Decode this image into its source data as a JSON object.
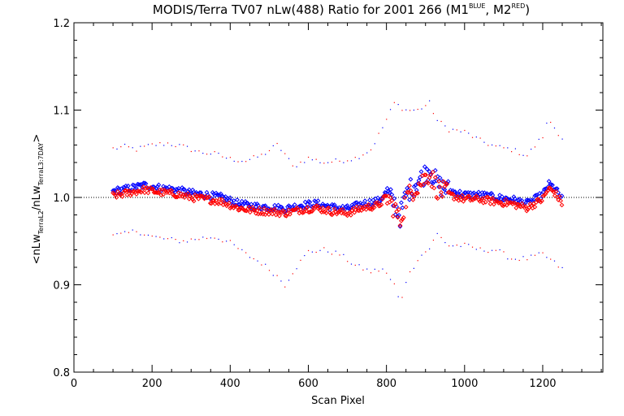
{
  "chart_data": {
    "type": "scatter",
    "title": {
      "main": "MODIS/Terra TV07 nLw(488) Ratio for 2001 266 (M1",
      "sup1": "BLUE",
      "mid": ", M2",
      "sup2": "RED",
      "end": ")"
    },
    "xlabel": "Scan Pixel",
    "ylabel": {
      "open": "<nLw",
      "sub1": "TerraL2",
      "slash": "/nLw",
      "sub2": "TerraL3:7DAY",
      "close": ">"
    },
    "xlim": [
      0,
      1354
    ],
    "ylim": [
      0.8,
      1.2
    ],
    "x_ticks": [
      0,
      200,
      400,
      600,
      800,
      1000,
      1200
    ],
    "x_tick_labels": [
      "0",
      "200",
      "400",
      "600",
      "800",
      "1000",
      "1200"
    ],
    "y_ticks": [
      0.8,
      0.9,
      1.0,
      1.1,
      1.2
    ],
    "y_tick_labels": [
      "0.8",
      "0.9",
      "1.0",
      "1.1",
      "1.2"
    ],
    "reference_line": {
      "y": 1.0,
      "style": "dotted"
    },
    "colors": {
      "M1": "#0000ff",
      "M2": "#ff0000",
      "axes": "#000000"
    },
    "mean_curve": {
      "x": [
        100,
        150,
        180,
        220,
        260,
        300,
        340,
        380,
        420,
        460,
        500,
        540,
        580,
        620,
        660,
        700,
        740,
        780,
        800,
        820,
        835,
        850,
        870,
        890,
        910,
        930,
        960,
        1000,
        1040,
        1080,
        1120,
        1160,
        1200,
        1215,
        1230,
        1250
      ],
      "y": [
        1.004,
        1.008,
        1.011,
        1.008,
        1.006,
        1.002,
        1.0,
        0.997,
        0.99,
        0.987,
        0.986,
        0.984,
        0.988,
        0.99,
        0.986,
        0.984,
        0.99,
        0.993,
        1.003,
        0.99,
        0.975,
        1.0,
        1.012,
        1.02,
        1.03,
        1.012,
        1.005,
        1.0,
        1.0,
        0.997,
        0.995,
        0.99,
        1.0,
        1.012,
        1.008,
        0.995
      ]
    },
    "upper_envelope": {
      "x": [
        100,
        130,
        160,
        200,
        240,
        280,
        320,
        360,
        400,
        440,
        480,
        520,
        540,
        560,
        600,
        640,
        680,
        720,
        760,
        790,
        820,
        850,
        880,
        910,
        930,
        960,
        1000,
        1040,
        1080,
        1120,
        1160,
        1200,
        1215,
        1230,
        1250
      ],
      "y": [
        1.056,
        1.058,
        1.055,
        1.06,
        1.062,
        1.058,
        1.052,
        1.05,
        1.044,
        1.042,
        1.048,
        1.06,
        1.05,
        1.035,
        1.045,
        1.04,
        1.042,
        1.045,
        1.055,
        1.08,
        1.108,
        1.1,
        1.1,
        1.108,
        1.088,
        1.078,
        1.075,
        1.065,
        1.058,
        1.055,
        1.048,
        1.07,
        1.09,
        1.08,
        1.068
      ]
    },
    "lower_envelope": {
      "x": [
        100,
        130,
        160,
        200,
        240,
        280,
        320,
        360,
        400,
        440,
        480,
        520,
        540,
        560,
        600,
        640,
        680,
        720,
        760,
        790,
        820,
        835,
        850,
        880,
        910,
        930,
        960,
        1000,
        1040,
        1080,
        1120,
        1160,
        1200,
        1230,
        1250
      ],
      "y": [
        0.956,
        0.958,
        0.962,
        0.955,
        0.952,
        0.95,
        0.953,
        0.955,
        0.948,
        0.935,
        0.925,
        0.91,
        0.9,
        0.915,
        0.938,
        0.94,
        0.935,
        0.922,
        0.915,
        0.918,
        0.9,
        0.878,
        0.905,
        0.93,
        0.942,
        0.958,
        0.945,
        0.945,
        0.94,
        0.94,
        0.93,
        0.93,
        0.935,
        0.925,
        0.918
      ]
    }
  }
}
